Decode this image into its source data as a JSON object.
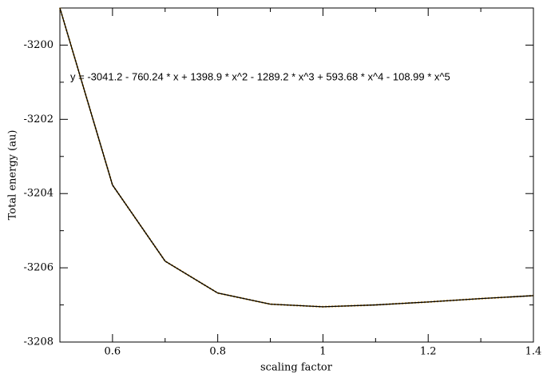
{
  "chart_data": {
    "type": "line",
    "xlabel": "scaling factor",
    "ylabel": "Total energy (au)",
    "annotation": "y = -3041.2 - 760.24 * x + 1398.9 * x^2 - 1289.2 * x^3 + 593.68 * x^4 - 108.99 * x^5",
    "x": [
      0.5,
      0.6,
      0.7,
      0.8,
      0.9,
      1.0,
      1.1,
      1.2,
      1.3,
      1.4
    ],
    "series": [
      {
        "color": "#e0a020",
        "dashed": true,
        "values": [
          -3199,
          -3203.77,
          -3205.82,
          -3206.68,
          -3206.98,
          -3207.05,
          -3207.0,
          -3206.92,
          -3206.83,
          -3206.75
        ]
      },
      {
        "color": "#000000",
        "values": [
          -3199,
          -3203.77,
          -3205.82,
          -3206.68,
          -3206.98,
          -3207.05,
          -3207.0,
          -3206.92,
          -3206.83,
          -3206.75
        ]
      }
    ],
    "xlim": [
      0.5,
      1.4
    ],
    "ylim": [
      -3208,
      -3199
    ],
    "xticks": [
      0.6,
      0.8,
      1,
      1.2,
      1.4
    ],
    "yticks": [
      -3208,
      -3206,
      -3204,
      -3202,
      -3200
    ],
    "xminorticks": [
      0.5,
      0.7,
      0.9,
      1.1,
      1.3
    ],
    "yminorticks": [
      -3207,
      -3205,
      -3203,
      -3201,
      -3199
    ]
  }
}
